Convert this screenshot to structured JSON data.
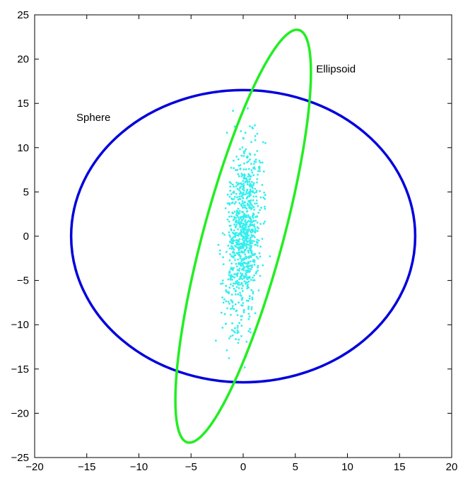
{
  "chart_data": {
    "type": "scatter",
    "xlim": [
      -20,
      20
    ],
    "ylim": [
      -25,
      25
    ],
    "xticks": [
      -20,
      -15,
      -10,
      -5,
      0,
      5,
      10,
      15,
      20
    ],
    "yticks": [
      -25,
      -20,
      -15,
      -10,
      -5,
      0,
      5,
      10,
      15,
      20,
      25
    ],
    "xtick_labels": [
      "−20",
      "−15",
      "−10",
      "−5",
      "0",
      "5",
      "10",
      "15",
      "20"
    ],
    "ytick_labels": [
      "−25",
      "−20",
      "−15",
      "−10",
      "−5",
      "0",
      "5",
      "10",
      "15",
      "20",
      "25"
    ],
    "grid": false,
    "curves": [
      {
        "label": "Sphere",
        "shape": "circle",
        "color": "#0000dd",
        "center": [
          0,
          0
        ],
        "radius": 16.5
      },
      {
        "label": "Ellipsoid",
        "shape": "ellipse",
        "color": "#22ee22",
        "center": [
          0,
          0
        ],
        "extremes": {
          "top": [
            5.3,
            23.3
          ],
          "bottom": [
            -5.3,
            -23.3
          ],
          "right": [
            6.5,
            18.5
          ],
          "left": [
            -6.5,
            -18.5
          ]
        }
      }
    ],
    "annotations": [
      {
        "text": "Sphere",
        "x": -16,
        "y": 13
      },
      {
        "text": "Ellipsoid",
        "x": 7,
        "y": 18.5
      }
    ],
    "scatter": {
      "color": "#33eeee",
      "count": 900,
      "mean": [
        0,
        0
      ],
      "std": [
        0.85,
        5.2
      ],
      "correlation": 0.28,
      "x_range": [
        -3,
        3
      ],
      "y_range": [
        -15,
        15.5
      ]
    }
  }
}
